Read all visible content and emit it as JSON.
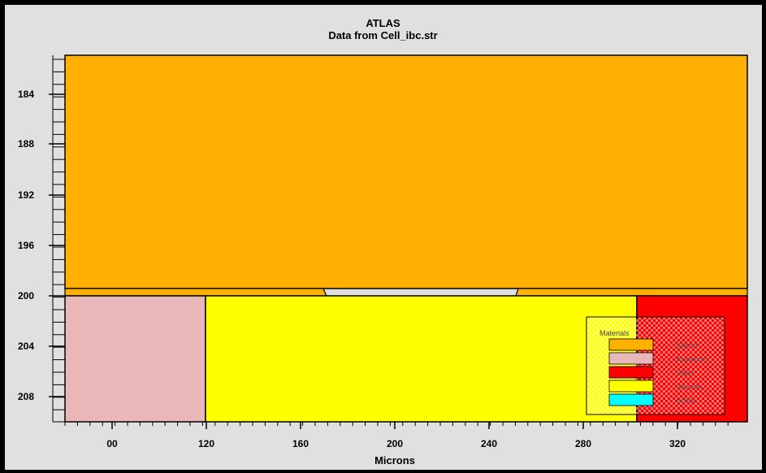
{
  "header": {
    "title": "ATLAS",
    "subtitle": "Data from Cell_ibc.str"
  },
  "axes": {
    "x_label": "Microns",
    "x_ticks": [
      "00",
      "120",
      "160",
      "200",
      "240",
      "280",
      "320"
    ],
    "y_ticks": [
      "184",
      "188",
      "192",
      "196",
      "200",
      "204",
      "208"
    ]
  },
  "regions": [
    {
      "name": "silicon-region",
      "material": "Silicon",
      "color": "#ffb000"
    },
    {
      "name": "aluminum-region",
      "material": "Aluminum",
      "color": "#e8b8b8"
    },
    {
      "name": "vacuum-region",
      "material": "Vacuum",
      "color": "#ffff00"
    },
    {
      "name": "silver-region",
      "material": "Silver",
      "color": "#ff0000"
    }
  ],
  "legend": {
    "title": "Materials",
    "items": [
      {
        "label": "Silicon",
        "color": "#ffb000"
      },
      {
        "label": "Aluminum",
        "color": "#e8b8b8"
      },
      {
        "label": "Silver",
        "color": "#ff0000"
      },
      {
        "label": "Vacuum",
        "color": "#ffff00"
      },
      {
        "label": "Si3N4",
        "color": "#00ffff"
      }
    ]
  }
}
